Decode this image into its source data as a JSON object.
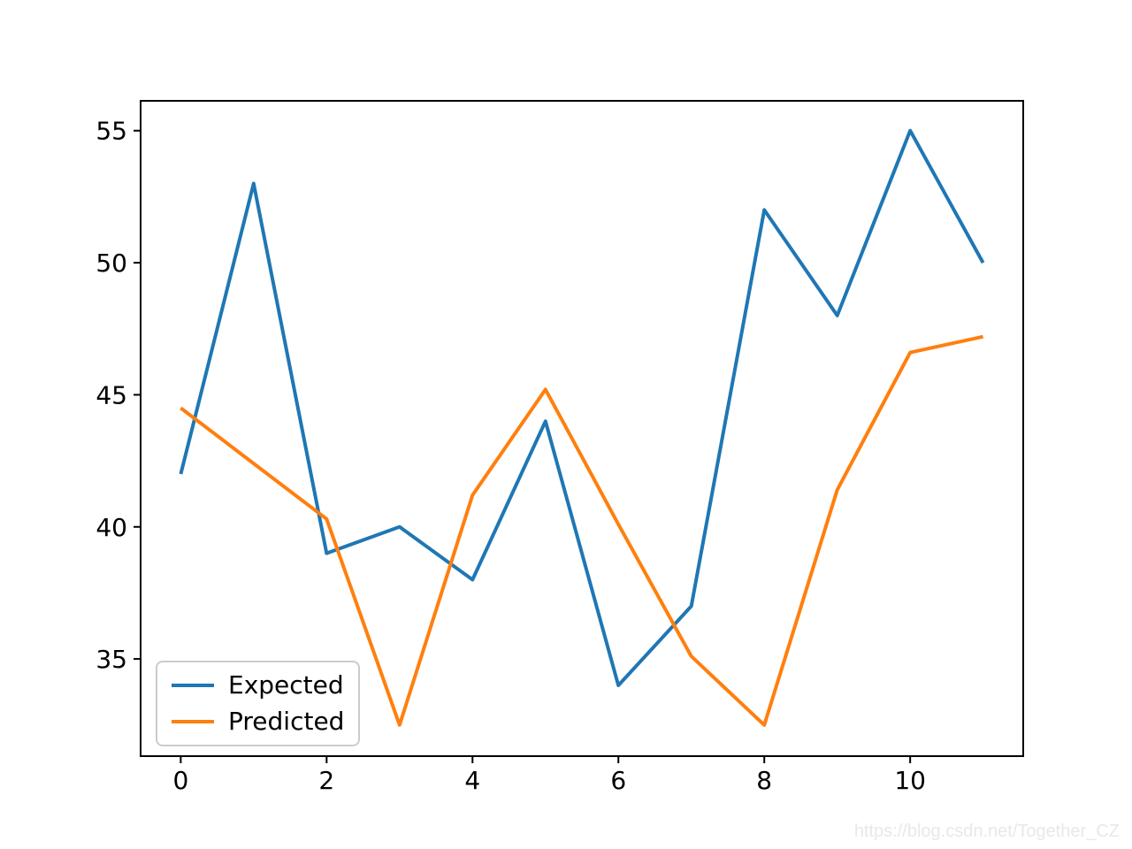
{
  "watermark": "https://blog.csdn.net/Together_CZ",
  "legend_colors": {
    "expected": "#1f77b4",
    "predicted": "#ff7f0e"
  },
  "chart_data": {
    "type": "line",
    "title": "",
    "xlabel": "",
    "ylabel": "",
    "x": [
      0,
      1,
      2,
      3,
      4,
      5,
      6,
      7,
      8,
      9,
      10,
      11
    ],
    "series": [
      {
        "name": "Expected",
        "color": "#1f77b4",
        "values": [
          42,
          53,
          39,
          40,
          38,
          44,
          34,
          37,
          52,
          48,
          55,
          50
        ]
      },
      {
        "name": "Predicted",
        "color": "#ff7f0e",
        "values": [
          44.5,
          42.4,
          40.3,
          32.5,
          41.2,
          45.2,
          40.1,
          35.1,
          32.5,
          41.4,
          46.6,
          47.2
        ]
      }
    ],
    "x_ticks": [
      0,
      2,
      4,
      6,
      8,
      10
    ],
    "y_ticks": [
      35,
      40,
      45,
      50,
      55
    ],
    "xlim": [
      -0.55,
      11.55
    ],
    "ylim": [
      31.32,
      56.13
    ],
    "grid": false,
    "legend_position": "lower left",
    "line_width": 4,
    "axis_color": "#000000"
  }
}
